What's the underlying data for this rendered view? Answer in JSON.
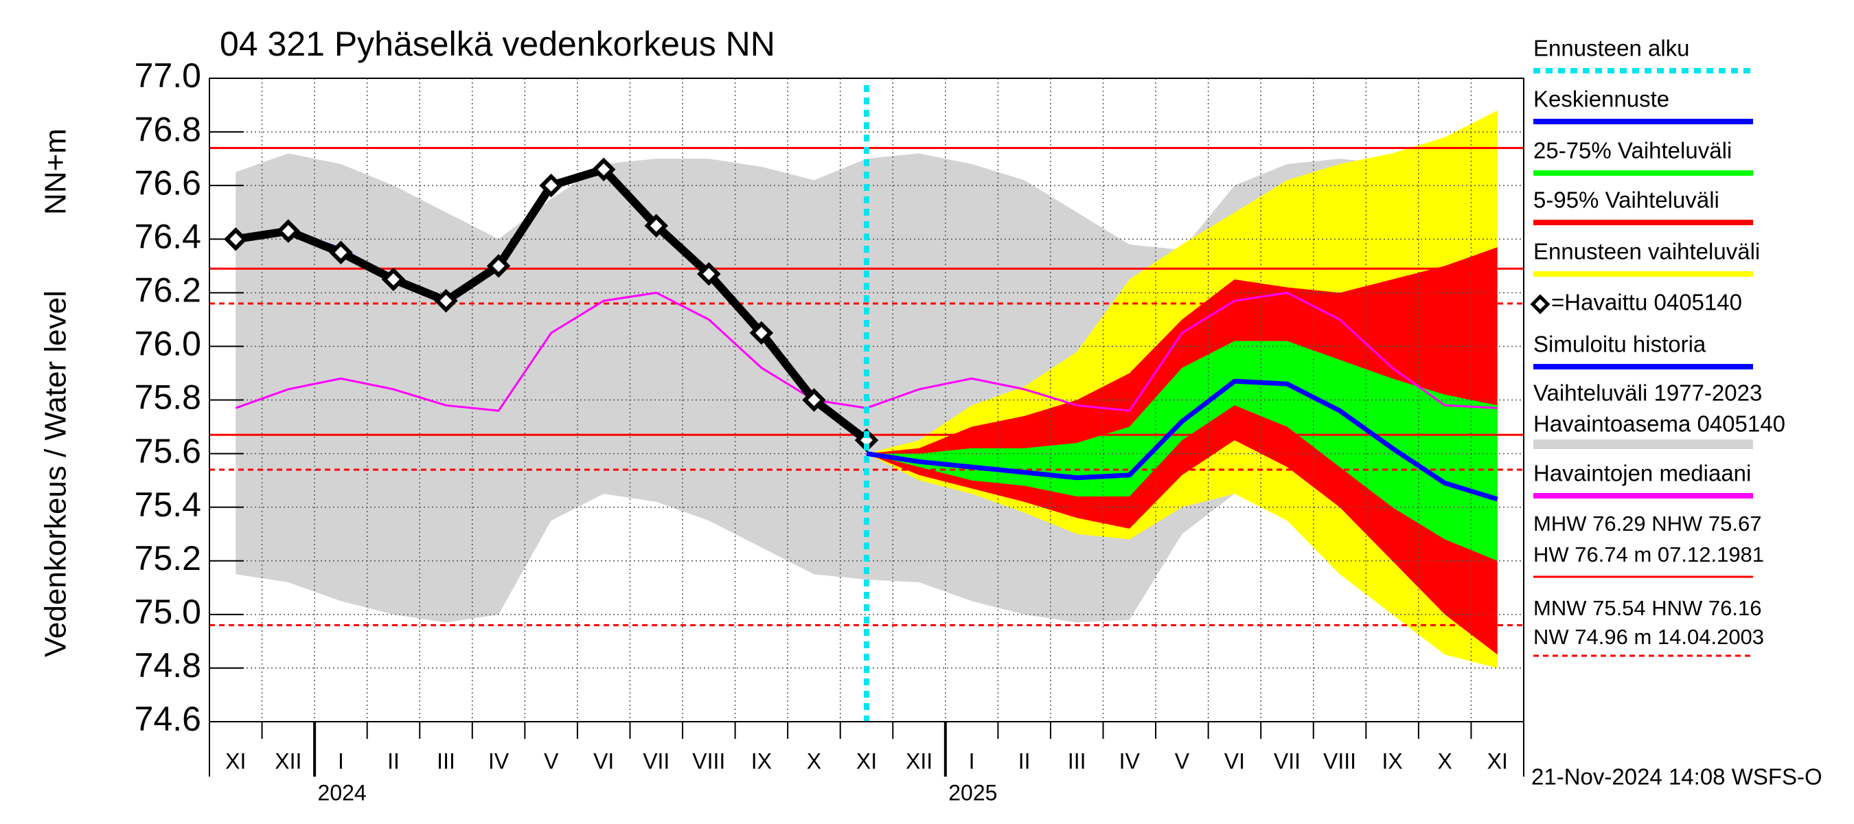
{
  "chart_data": {
    "type": "line",
    "title": "04 321 Pyhäselkä vedenkorkeus NN",
    "y_label": "Vedenkorkeus / Water level",
    "y_unit_label": "NN+m",
    "footer": "21-Nov-2024 14:08 WSFS-O",
    "categories": [
      "XI",
      "XII",
      "I",
      "II",
      "III",
      "IV",
      "V",
      "VI",
      "VII",
      "VIII",
      "IX",
      "X",
      "XI",
      "XII",
      "I",
      "II",
      "III",
      "IV",
      "V",
      "VI",
      "VII",
      "VIII",
      "IX",
      "X",
      "XI"
    ],
    "year_labels": [
      "2024",
      "2025"
    ],
    "ylim": [
      74.6,
      77.0
    ],
    "yticks": [
      74.6,
      74.8,
      {
        "value": 75.0,
        "label": "75.0"
      },
      75.2,
      75.4,
      75.6,
      75.8,
      {
        "value": 76.0,
        "label": "76.0"
      },
      76.2,
      76.4,
      76.6,
      76.8,
      {
        "value": 77.0,
        "label": "77.0"
      }
    ],
    "grid": true,
    "forecast_start": {
      "name": "Ennusteen alku",
      "color": "#00e5ee"
    },
    "bands": [
      {
        "name": "Vaihteluväli 1977-2023",
        "name2": " Havaintoasema 0405140",
        "color": "#d3d3d3",
        "low": [
          75.15,
          75.12,
          75.05,
          75.0,
          74.97,
          75.0,
          75.35,
          75.45,
          75.42,
          75.35,
          75.25,
          75.15,
          75.13,
          75.12,
          75.05,
          75.0,
          74.97,
          74.98,
          75.3,
          75.45,
          75.42,
          75.35,
          75.25,
          75.15,
          75.13
        ],
        "high": [
          76.65,
          76.72,
          76.68,
          76.6,
          76.5,
          76.4,
          76.55,
          76.68,
          76.7,
          76.7,
          76.67,
          76.62,
          76.7,
          76.72,
          76.68,
          76.62,
          76.5,
          76.38,
          76.36,
          76.6,
          76.68,
          76.7,
          76.68,
          76.65,
          76.7
        ]
      },
      {
        "name": "Ennusteen vaihteluväli",
        "color": "#ffff00",
        "low": [
          null,
          null,
          null,
          null,
          null,
          null,
          null,
          null,
          null,
          null,
          null,
          null,
          75.6,
          75.5,
          75.45,
          75.38,
          75.3,
          75.28,
          75.4,
          75.45,
          75.35,
          75.15,
          75.0,
          74.85,
          74.8
        ],
        "high": [
          null,
          null,
          null,
          null,
          null,
          null,
          null,
          null,
          null,
          null,
          null,
          null,
          75.6,
          75.65,
          75.78,
          75.85,
          75.98,
          76.25,
          76.38,
          76.5,
          76.62,
          76.68,
          76.72,
          76.78,
          76.88
        ]
      },
      {
        "name": "5-95% Vaihteluväli",
        "color": "#ff0000",
        "low": [
          null,
          null,
          null,
          null,
          null,
          null,
          null,
          null,
          null,
          null,
          null,
          null,
          75.6,
          75.52,
          75.47,
          75.42,
          75.36,
          75.32,
          75.52,
          75.65,
          75.55,
          75.4,
          75.2,
          75.0,
          74.85
        ],
        "high": [
          null,
          null,
          null,
          null,
          null,
          null,
          null,
          null,
          null,
          null,
          null,
          null,
          75.6,
          75.62,
          75.7,
          75.74,
          75.8,
          75.9,
          76.1,
          76.25,
          76.22,
          76.2,
          76.25,
          76.3,
          76.37
        ]
      },
      {
        "name": "25-75% Vaihteluväli",
        "color": "#00ff00",
        "low": [
          null,
          null,
          null,
          null,
          null,
          null,
          null,
          null,
          null,
          null,
          null,
          null,
          75.6,
          75.55,
          75.5,
          75.48,
          75.44,
          75.44,
          75.65,
          75.78,
          75.7,
          75.55,
          75.4,
          75.28,
          75.2
        ],
        "high": [
          null,
          null,
          null,
          null,
          null,
          null,
          null,
          null,
          null,
          null,
          null,
          null,
          75.6,
          75.6,
          75.62,
          75.62,
          75.64,
          75.7,
          75.92,
          76.02,
          76.02,
          75.95,
          75.88,
          75.82,
          75.78
        ]
      }
    ],
    "series": [
      {
        "name": "Havaintojen mediaani",
        "color": "#ff00ff",
        "width": 3,
        "values": [
          75.77,
          75.84,
          75.88,
          75.84,
          75.78,
          75.76,
          76.05,
          76.17,
          76.2,
          76.1,
          75.92,
          75.8,
          75.77,
          75.84,
          75.88,
          75.84,
          75.78,
          75.76,
          76.05,
          76.17,
          76.2,
          76.1,
          75.92,
          75.78,
          75.77
        ]
      },
      {
        "name": "Simuloitu historia",
        "color": "#0000ff",
        "width": 7,
        "values": [
          76.4,
          76.43,
          76.36,
          76.25,
          76.17,
          76.31,
          76.61,
          76.65,
          76.45,
          76.28,
          76.05,
          75.8,
          75.64,
          null,
          null,
          null,
          null,
          null,
          null,
          null,
          null,
          null,
          null,
          null,
          null
        ]
      },
      {
        "name": "Keskiennuste",
        "color": "#0000ff",
        "width": 7,
        "values": [
          null,
          null,
          null,
          null,
          null,
          null,
          null,
          null,
          null,
          null,
          null,
          null,
          75.6,
          75.57,
          75.55,
          75.53,
          75.51,
          75.52,
          75.72,
          75.87,
          75.86,
          75.76,
          75.62,
          75.49,
          75.43
        ]
      },
      {
        "name": "=Havaittu 0405140",
        "color": "#000000",
        "width": 12,
        "markers": true,
        "values": [
          76.4,
          76.43,
          76.35,
          76.25,
          76.17,
          76.3,
          76.6,
          76.66,
          76.45,
          76.27,
          76.05,
          75.8,
          75.65,
          null,
          null,
          null,
          null,
          null,
          null,
          null,
          null,
          null,
          null,
          null,
          null
        ]
      }
    ],
    "reference_lines": [
      {
        "name": "HW",
        "value": 76.74,
        "dashed": false
      },
      {
        "name": "MHW",
        "value": 76.29,
        "dashed": false
      },
      {
        "name": "NHW",
        "value": 75.67,
        "dashed": false
      },
      {
        "name": "HNW",
        "value": 76.16,
        "dashed": true
      },
      {
        "name": "MNW",
        "value": 75.54,
        "dashed": true
      },
      {
        "name": "NW",
        "value": 74.96,
        "dashed": true
      }
    ],
    "reference_color": "#ff0000",
    "reference_texts": [
      "MHW  76.29 NHW  75.67",
      "HW  76.74 m 07.12.1981",
      "MNW  75.54 HNW  76.16",
      "NW  74.96 m 14.04.2003"
    ]
  }
}
